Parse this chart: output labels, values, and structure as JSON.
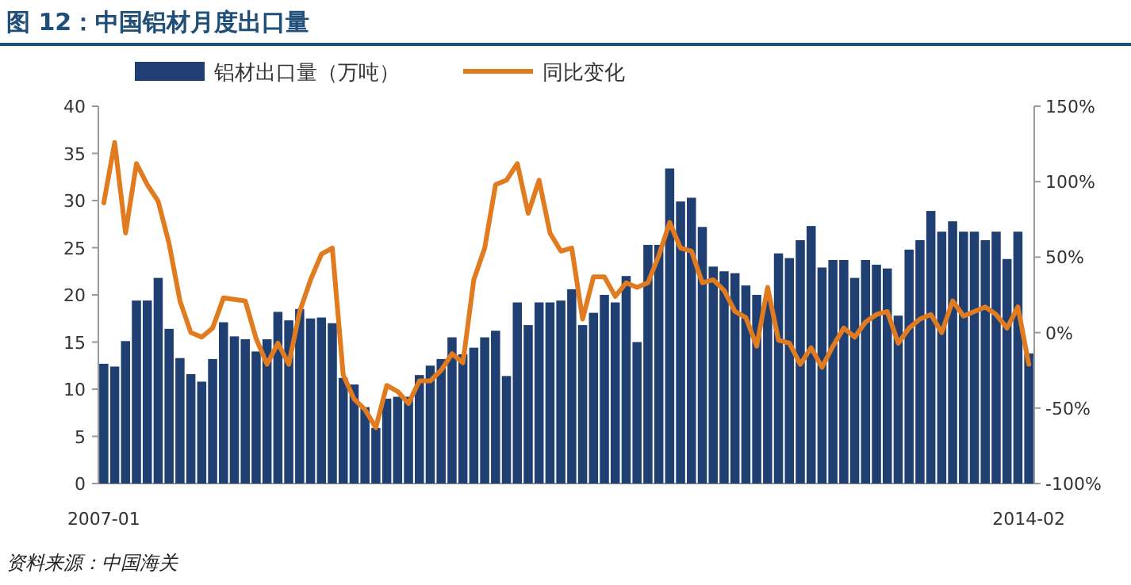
{
  "chart_data": {
    "type": "bar",
    "title": "图 12：中国铝材月度出口量",
    "categories": [
      "2007-01",
      null,
      null,
      null,
      null,
      null,
      null,
      null,
      null,
      null,
      null,
      null,
      null,
      null,
      null,
      null,
      null,
      null,
      null,
      null,
      null,
      null,
      null,
      null,
      null,
      null,
      null,
      null,
      null,
      null,
      null,
      null,
      null,
      null,
      null,
      null,
      null,
      null,
      null,
      null,
      null,
      null,
      null,
      null,
      null,
      null,
      null,
      null,
      null,
      null,
      null,
      null,
      null,
      null,
      null,
      null,
      null,
      null,
      null,
      null,
      null,
      null,
      null,
      null,
      null,
      null,
      null,
      null,
      null,
      null,
      null,
      null,
      null,
      null,
      null,
      null,
      null,
      null,
      null,
      null,
      null,
      null,
      null,
      null,
      null,
      "2014-02"
    ],
    "series": [
      {
        "name": "铝材出口量（万吨）",
        "color": "#1f3f73",
        "values": [
          12.7,
          12.4,
          15.1,
          19.4,
          19.4,
          21.8,
          16.4,
          13.3,
          11.6,
          10.8,
          13.2,
          17.1,
          15.6,
          15.3,
          14.0,
          15.3,
          18.2,
          17.3,
          18.5,
          17.5,
          17.6,
          17.0,
          11.2,
          10.5,
          8.1,
          5.9,
          9.0,
          9.2,
          9.2,
          11.5,
          12.5,
          13.2,
          15.5,
          13.7,
          14.4,
          15.5,
          16.2,
          11.4,
          19.2,
          16.8,
          19.2,
          19.2,
          19.4,
          20.6,
          16.8,
          18.1,
          20.0,
          19.2,
          22.0,
          15.0,
          25.3,
          25.3,
          33.4,
          29.9,
          30.3,
          27.2,
          23.0,
          22.5,
          22.3,
          21.0,
          20.0,
          19.5,
          24.4,
          23.9,
          25.8,
          27.3,
          22.9,
          23.7,
          23.7,
          21.8,
          23.7,
          23.2,
          22.8,
          17.8,
          24.8,
          25.8,
          28.9,
          26.7,
          27.8,
          26.7,
          26.7,
          25.8,
          26.7,
          23.8,
          26.7,
          13.8
        ]
      },
      {
        "name": "同比变化",
        "type": "line",
        "axis": "y2",
        "color": "#e07b1f",
        "values": [
          86,
          126,
          66,
          112,
          98,
          87,
          59,
          21,
          0,
          -3,
          3,
          23,
          22,
          21,
          -4,
          -21,
          -7,
          -21,
          14,
          35,
          52,
          56,
          -28,
          -44,
          -51,
          -63,
          -35,
          -39,
          -47,
          -32,
          -32,
          -25,
          -14,
          -20,
          35,
          56,
          98,
          101,
          112,
          79,
          101,
          66,
          54,
          56,
          9,
          37,
          37,
          24,
          33,
          30,
          33,
          51,
          73,
          56,
          54,
          33,
          35,
          28,
          14,
          10,
          -9,
          30,
          -5,
          -7,
          -21,
          -10,
          -23,
          -9,
          3,
          -3,
          7,
          12,
          14,
          -7,
          3,
          9,
          12,
          0,
          21,
          11,
          14,
          17,
          12,
          3,
          17,
          -21
        ]
      }
    ],
    "ylim": [
      0,
      40
    ],
    "yticks": [
      0,
      5,
      10,
      15,
      20,
      25,
      30,
      35,
      40
    ],
    "y2lim": [
      -100,
      150
    ],
    "y2ticks": [
      {
        "value": -100,
        "label": "-100%"
      },
      {
        "value": -50,
        "label": "-50%"
      },
      {
        "value": 0,
        "label": "0%"
      },
      {
        "value": 50,
        "label": "50%"
      },
      {
        "value": 100,
        "label": "100%"
      },
      {
        "value": 150,
        "label": "150%"
      }
    ],
    "legend": "top",
    "annotations": [
      "资料来源：中国海关"
    ]
  }
}
